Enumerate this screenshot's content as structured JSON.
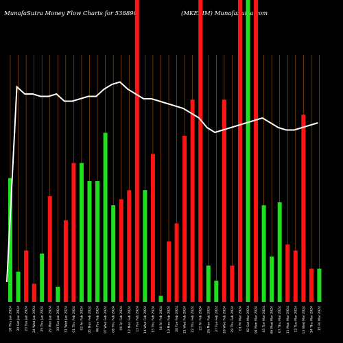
{
  "chart_data": {
    "type": "bar",
    "title_left": "MunafaSutra  Money Flow  Charts for 538890",
    "title_right": "(MKEXIM)  MunafaSutra.com",
    "xlabel": "",
    "ylabel": "",
    "grid": true,
    "ylim": [
      0,
      100
    ],
    "categories": [
      "18 Thu Jan 2024",
      "20 Sat Jan 2024",
      "23 Tue Jan 2024",
      "24 Wed Jan 2024",
      "25 Thu Jan 2024",
      "29 Mon Jan 2024",
      "30 Tue Jan 2024",
      "31 Wed Jan 2024",
      "01 Thu Feb 2024",
      "02 Fri Feb 2024",
      "05 Mon Feb 2024",
      "06 Tue Feb 2024",
      "07 Wed Feb 2024",
      "08 Thu Feb 2024",
      "09 Fri Feb 2024",
      "12 Mon Feb 2024",
      "13 Tue Feb 2024",
      "14 Wed Feb 2024",
      "15 Thu Feb 2024",
      "16 Fri Feb 2024",
      "19 Mon Feb 2024",
      "20 Tue Feb 2024",
      "21 Wed Feb 2024",
      "22 Thu Feb 2024",
      "23 Fri Feb 2024",
      "26 Mon Feb 2024",
      "27 Tue Feb 2024",
      "28 Wed Feb 2024",
      "29 Thu Feb 2024",
      "01 Fri Mar 2024",
      "02 Sat Mar 2024",
      "04 Mon Mar 2024",
      "05 Tue Mar 2024",
      "06 Wed Mar 2024",
      "07 Thu Mar 2024",
      "11 Mon Mar 2024",
      "12 Tue Mar 2024",
      "13 Wed Mar 2024",
      "14 Thu Mar 2024",
      "15 Fri Mar 2024"
    ],
    "bar_colors": {
      "in": "#1fe01f",
      "out": "#ff1414"
    },
    "grid_color": "#a05a10",
    "line_color": "#ffffff",
    "series": [
      {
        "kind": "bars",
        "values": [
          41,
          10,
          17,
          6,
          16,
          35,
          5,
          27,
          46,
          46,
          40,
          40,
          56,
          32,
          34,
          37,
          100,
          37,
          49,
          2,
          20,
          26,
          55,
          67,
          100,
          12,
          7,
          67,
          12,
          100,
          100,
          100,
          32,
          15,
          33,
          19,
          17,
          62,
          11,
          11
        ],
        "flow": [
          "in",
          "in",
          "out",
          "out",
          "in",
          "out",
          "in",
          "out",
          "out",
          "in",
          "in",
          "in",
          "in",
          "in",
          "out",
          "out",
          "out",
          "in",
          "out",
          "in",
          "out",
          "out",
          "out",
          "out",
          "out",
          "in",
          "in",
          "out",
          "out",
          "out",
          "in",
          "out",
          "in",
          "in",
          "in",
          "out",
          "out",
          "out",
          "out",
          "in"
        ]
      },
      {
        "kind": "line",
        "values": [
          28,
          73,
          70,
          70,
          69,
          69,
          70,
          67,
          67,
          68,
          69,
          69,
          72,
          74,
          75,
          72,
          70,
          68,
          68,
          67,
          66,
          65,
          64,
          62,
          60,
          56,
          54,
          55,
          56,
          57,
          58,
          59,
          60,
          58,
          56,
          55,
          55,
          56,
          57,
          58
        ]
      }
    ],
    "line_y_range": [
      52,
      82
    ]
  }
}
